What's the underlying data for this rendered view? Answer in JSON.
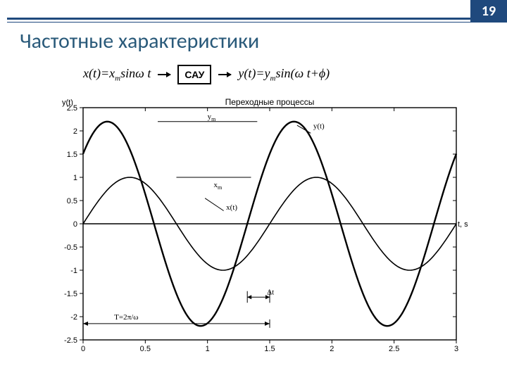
{
  "accent_color": "#1f497d",
  "title_color": "#2a5a7a",
  "page_number": "19",
  "title": "Частотные характеристики",
  "formula": {
    "input": {
      "pre": "x(t)=x",
      "sub": "m",
      "post": "sin",
      "omega": "ω",
      "tail": " t"
    },
    "box": "САУ",
    "output": {
      "pre": "y(t)=y",
      "sub": "m",
      "post": "sin(",
      "omega": "ω",
      "tail": " t+",
      "phi": "ϕ",
      "close": ")"
    }
  },
  "chart": {
    "type": "line",
    "title": "Переходные процессы",
    "xlabel": "t, s",
    "ylabel": "y(t)",
    "xlim": [
      0,
      3
    ],
    "ylim": [
      -2.5,
      2.5
    ],
    "xticks": [
      0,
      0.5,
      1,
      1.5,
      2,
      2.5,
      3
    ],
    "yticks": [
      -2.5,
      -2,
      -1.5,
      -1,
      -0.5,
      0,
      0.5,
      1,
      1.5,
      2,
      2.5
    ],
    "background_color": "#ffffff",
    "border_color": "#000000",
    "curves": {
      "x": {
        "label": "x(t)",
        "amplitude": 1.0,
        "phase_shift": 0.0,
        "period": 1.5,
        "line_width": 1.6,
        "color": "#000000"
      },
      "y": {
        "label": "y(t)",
        "amplitude": 2.2,
        "phase_shift": -0.18,
        "period": 1.5,
        "line_width": 2.4,
        "color": "#000000"
      }
    },
    "annotations": {
      "ym_label": "y",
      "ym_sub": "m",
      "xm_label": "x",
      "xm_sub": "m",
      "xt_label": "x(t)",
      "yt_label": "y(t)",
      "dt_label": "Δt",
      "T_label": "T=2π/ω"
    }
  }
}
